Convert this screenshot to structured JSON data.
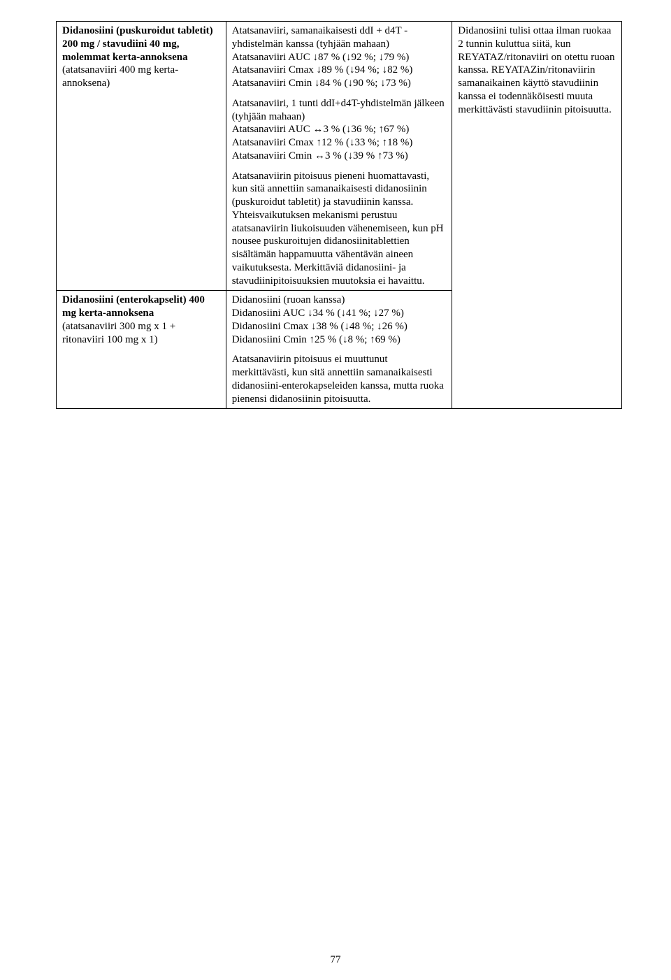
{
  "row1": {
    "col1": {
      "l1": "Didanosiini (puskuroidut tabletit)",
      "l2": "200 mg / stavudiini 40 mg, molemmat kerta-annoksena",
      "l3": "(atatsanaviiri 400 mg kerta-annoksena)"
    },
    "col2": {
      "p1": "Atatsanaviiri, samanaikaisesti ddI + d4T -yhdistelmän kanssa (tyhjään mahaan)\nAtatsanaviiri AUC ↓87 % (↓92 %; ↓79 %)\nAtatsanaviiri Cmax ↓89 % (↓94 %; ↓82 %)\nAtatsanaviiri Cmin ↓84 % (↓90 %; ↓73 %)",
      "p2": "Atatsanaviiri, 1 tunti ddI+d4T-yhdistelmän jälkeen (tyhjään mahaan)\nAtatsanaviiri AUC ↔3 % (↓36 %; ↑67 %)\nAtatsanaviiri Cmax ↑12 % (↓33 %; ↑18 %)\nAtatsanaviiri Cmin ↔3 % (↓39 % ↑73 %)",
      "p3": "Atatsanaviirin pitoisuus pieneni huomattavasti, kun sitä annettiin samanaikaisesti didanosiinin (puskuroidut tabletit) ja stavudiinin kanssa. Yhteisvaikutuksen mekanismi perustuu atatsanaviirin liukoisuuden vähenemiseen, kun pH nousee puskuroitujen didanosiinitablettien sisältämän happamuutta vähentävän aineen vaikutuksesta. Merkittäviä didanosiini- ja stavudiinipitoisuuksien muutoksia ei havaittu."
    },
    "col3": {
      "p1": "Didanosiini tulisi ottaa ilman ruokaa 2 tunnin kuluttua siitä, kun REYATAZ/ritonaviiri on otettu ruoan kanssa. REYATAZin/ritonaviirin samanaikainen käyttö stavudiinin kanssa ei todennäköisesti muuta merkittävästi stavudiinin pitoisuutta."
    }
  },
  "row2": {
    "col1": {
      "l1": "Didanosiini (enterokapselit) 400 mg kerta-annoksena",
      "l2": "(atatsanaviiri 300 mg x 1 + ritonaviiri 100 mg x 1)"
    },
    "col2": {
      "p1": "Didanosiini (ruoan kanssa)\nDidanosiini AUC ↓34 % (↓41 %; ↓27 %)\nDidanosiini Cmax ↓38 % (↓48 %; ↓26 %)\nDidanosiini Cmin ↑25 % (↓8 %; ↑69 %)",
      "p2": "Atatsanaviirin pitoisuus ei muuttunut merkittävästi, kun sitä annettiin samanaikaisesti didanosiini-enterokapseleiden kanssa, mutta ruoka pienensi didanosiinin pitoisuutta."
    }
  },
  "pagenum": "77"
}
